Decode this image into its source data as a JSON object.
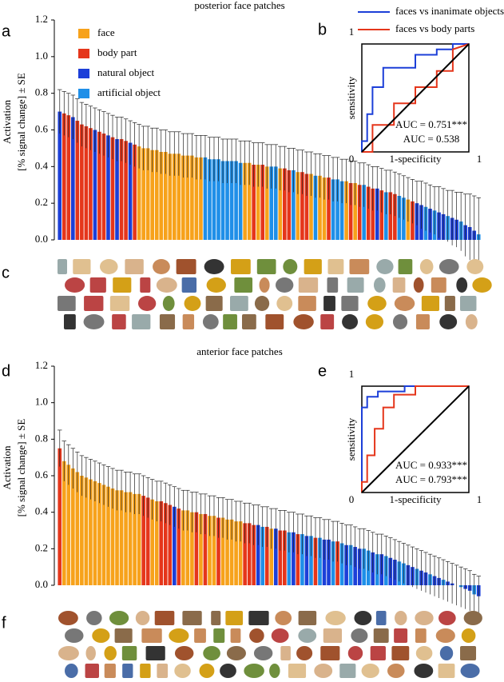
{
  "panel_labels": {
    "a": "a",
    "b": "b",
    "c": "c",
    "d": "d",
    "e": "e",
    "f": "f"
  },
  "chart_data": [
    {
      "type": "bar",
      "title": "posterior face patches",
      "ylabel": [
        "Activation",
        "[% signal change] ± SE"
      ],
      "legend": [
        {
          "name": "face",
          "color": "#f7a21b"
        },
        {
          "name": "body part",
          "color": "#e5361b"
        },
        {
          "name": "natural object",
          "color": "#1c3fd8"
        },
        {
          "name": "artificial object",
          "color": "#1f8fe8"
        }
      ],
      "ylim": [
        0,
        1.2
      ],
      "yticks": [
        {
          "value": 0,
          "label": "0.0"
        },
        0.2,
        0.4,
        0.6,
        0.8,
        {
          "value": 1,
          "label": "1.0"
        },
        1.2
      ],
      "values": [
        0.7,
        0.69,
        0.68,
        0.67,
        0.65,
        0.63,
        0.62,
        0.61,
        0.6,
        0.59,
        0.58,
        0.57,
        0.56,
        0.55,
        0.55,
        0.54,
        0.53,
        0.52,
        0.51,
        0.5,
        0.5,
        0.49,
        0.49,
        0.48,
        0.48,
        0.47,
        0.47,
        0.47,
        0.46,
        0.46,
        0.46,
        0.45,
        0.45,
        0.45,
        0.44,
        0.44,
        0.44,
        0.43,
        0.43,
        0.43,
        0.43,
        0.42,
        0.42,
        0.42,
        0.41,
        0.41,
        0.41,
        0.4,
        0.4,
        0.4,
        0.39,
        0.39,
        0.38,
        0.38,
        0.37,
        0.37,
        0.36,
        0.36,
        0.35,
        0.35,
        0.34,
        0.34,
        0.33,
        0.33,
        0.32,
        0.32,
        0.31,
        0.31,
        0.3,
        0.3,
        0.29,
        0.28,
        0.28,
        0.27,
        0.26,
        0.26,
        0.25,
        0.24,
        0.23,
        0.22,
        0.21,
        0.2,
        0.19,
        0.18,
        0.17,
        0.16,
        0.15,
        0.14,
        0.13,
        0.12,
        0.11,
        0.1,
        0.08,
        0.07,
        0.05,
        0.03
      ],
      "errors": [
        0.12,
        0.12,
        0.12,
        0.12,
        0.12,
        0.12,
        0.12,
        0.12,
        0.12,
        0.12,
        0.12,
        0.12,
        0.12,
        0.12,
        0.12,
        0.12,
        0.12,
        0.12,
        0.12,
        0.12,
        0.12,
        0.12,
        0.12,
        0.12,
        0.12,
        0.12,
        0.12,
        0.12,
        0.12,
        0.12,
        0.12,
        0.12,
        0.12,
        0.12,
        0.12,
        0.12,
        0.12,
        0.12,
        0.12,
        0.12,
        0.12,
        0.12,
        0.12,
        0.12,
        0.12,
        0.12,
        0.12,
        0.12,
        0.12,
        0.12,
        0.12,
        0.12,
        0.12,
        0.12,
        0.12,
        0.12,
        0.12,
        0.12,
        0.12,
        0.12,
        0.12,
        0.12,
        0.12,
        0.12,
        0.12,
        0.12,
        0.12,
        0.12,
        0.12,
        0.12,
        0.12,
        0.12,
        0.12,
        0.12,
        0.12,
        0.12,
        0.12,
        0.12,
        0.12,
        0.12,
        0.12,
        0.12,
        0.13,
        0.13,
        0.13,
        0.13,
        0.14,
        0.14,
        0.14,
        0.15,
        0.15,
        0.16,
        0.17,
        0.18,
        0.19,
        0.2
      ],
      "colors": [
        "#1c3fd8",
        "#e5361b",
        "#e5361b",
        "#1c3fd8",
        "#e5361b",
        "#e5361b",
        "#e5361b",
        "#e5361b",
        "#1c3fd8",
        "#e5361b",
        "#e5361b",
        "#1c3fd8",
        "#e5361b",
        "#1c3fd8",
        "#e5361b",
        "#e5361b",
        "#1c3fd8",
        "#e5361b",
        "#f7a21b",
        "#f7a21b",
        "#f7a21b",
        "#f7a21b",
        "#f7a21b",
        "#f7a21b",
        "#f7a21b",
        "#f7a21b",
        "#f7a21b",
        "#f7a21b",
        "#f7a21b",
        "#f7a21b",
        "#f7a21b",
        "#f7a21b",
        "#f7a21b",
        "#1f8fe8",
        "#1f8fe8",
        "#1f8fe8",
        "#1f8fe8",
        "#1f8fe8",
        "#1f8fe8",
        "#1f8fe8",
        "#1f8fe8",
        "#1f8fe8",
        "#f7a21b",
        "#f7a21b",
        "#e5361b",
        "#f7a21b",
        "#e5361b",
        "#f7a21b",
        "#1f8fe8",
        "#1f8fe8",
        "#f7a21b",
        "#e5361b",
        "#e5361b",
        "#1f8fe8",
        "#f7a21b",
        "#e5361b",
        "#e5361b",
        "#f7a21b",
        "#1f8fe8",
        "#f7a21b",
        "#f7a21b",
        "#e5361b",
        "#1f8fe8",
        "#1f8fe8",
        "#1f8fe8",
        "#f7a21b",
        "#e5361b",
        "#f7a21b",
        "#e5361b",
        "#1f8fe8",
        "#e5361b",
        "#e5361b",
        "#1c3fd8",
        "#e5361b",
        "#1f8fe8",
        "#e5361b",
        "#e5361b",
        "#1f8fe8",
        "#1f8fe8",
        "#f7a21b",
        "#e5361b",
        "#1c3fd8",
        "#1c3fd8",
        "#1f8fe8",
        "#1c3fd8",
        "#1f8fe8",
        "#1c3fd8",
        "#1c3fd8",
        "#1f8fe8",
        "#1c3fd8",
        "#1c3fd8",
        "#1f8fe8",
        "#1c3fd8",
        "#1c3fd8",
        "#1c3fd8",
        "#1f8fe8"
      ]
    },
    {
      "type": "line",
      "xlabel": "1-specificity",
      "ylabel": "sensitivity",
      "xlim": [
        0,
        1
      ],
      "ylim": [
        0,
        1
      ],
      "xticks": [
        1
      ],
      "yticks": [
        0,
        1
      ],
      "series": [
        {
          "name": "faces vs inanimate objects",
          "color": "#1c3fd8",
          "x": [
            0,
            0,
            0.05,
            0.05,
            0.1,
            0.1,
            0.2,
            0.2,
            0.5,
            0.5,
            0.7,
            0.7,
            0.85,
            0.85,
            1
          ],
          "y": [
            0,
            0.1,
            0.1,
            0.35,
            0.35,
            0.6,
            0.6,
            0.78,
            0.78,
            0.9,
            0.9,
            0.95,
            0.95,
            1,
            1
          ]
        },
        {
          "name": "faces vs body parts",
          "color": "#e5361b",
          "x": [
            0,
            0.1,
            0.1,
            0.3,
            0.3,
            0.5,
            0.5,
            0.7,
            0.7,
            0.85,
            0.85,
            1
          ],
          "y": [
            0,
            0,
            0.25,
            0.25,
            0.45,
            0.45,
            0.6,
            0.6,
            0.75,
            0.75,
            0.95,
            1
          ]
        },
        {
          "color": "#000000",
          "x": [
            0,
            1
          ],
          "y": [
            0,
            1
          ]
        }
      ],
      "annotations": [
        {
          "text": "AUC = 0.751***",
          "color": "#1c3fd8"
        },
        {
          "text": "AUC = 0.538",
          "color": "#e5361b"
        }
      ]
    },
    {
      "type": "bar",
      "title": "anterior face patches",
      "ylabel": [
        "Activation",
        "[% signal change] ± SE"
      ],
      "ylim": [
        0,
        1.2
      ],
      "yticks": [
        {
          "value": 0,
          "label": "0.0"
        },
        0.2,
        0.4,
        0.6,
        0.8,
        {
          "value": 1,
          "label": "1.0"
        },
        1.2
      ],
      "values": [
        0.75,
        0.68,
        0.66,
        0.64,
        0.62,
        0.6,
        0.59,
        0.58,
        0.57,
        0.56,
        0.55,
        0.54,
        0.53,
        0.52,
        0.52,
        0.51,
        0.51,
        0.5,
        0.5,
        0.49,
        0.48,
        0.47,
        0.46,
        0.46,
        0.45,
        0.44,
        0.43,
        0.42,
        0.41,
        0.41,
        0.4,
        0.4,
        0.39,
        0.39,
        0.38,
        0.38,
        0.37,
        0.37,
        0.36,
        0.36,
        0.35,
        0.35,
        0.34,
        0.34,
        0.33,
        0.33,
        0.32,
        0.32,
        0.31,
        0.31,
        0.3,
        0.3,
        0.29,
        0.29,
        0.28,
        0.28,
        0.27,
        0.27,
        0.26,
        0.26,
        0.25,
        0.25,
        0.24,
        0.24,
        0.23,
        0.22,
        0.22,
        0.21,
        0.2,
        0.2,
        0.19,
        0.18,
        0.17,
        0.17,
        0.16,
        0.15,
        0.14,
        0.13,
        0.12,
        0.11,
        0.1,
        0.09,
        0.08,
        0.07,
        0.06,
        0.05,
        0.04,
        0.03,
        0.02,
        0.01,
        0.0,
        -0.01,
        -0.02,
        -0.03,
        -0.05,
        -0.06
      ],
      "errors": [
        0.1,
        0.11,
        0.11,
        0.11,
        0.11,
        0.11,
        0.11,
        0.11,
        0.11,
        0.11,
        0.11,
        0.11,
        0.11,
        0.11,
        0.11,
        0.11,
        0.11,
        0.11,
        0.11,
        0.11,
        0.11,
        0.11,
        0.11,
        0.11,
        0.11,
        0.11,
        0.11,
        0.11,
        0.11,
        0.11,
        0.11,
        0.11,
        0.11,
        0.11,
        0.11,
        0.11,
        0.11,
        0.11,
        0.11,
        0.11,
        0.11,
        0.11,
        0.11,
        0.11,
        0.11,
        0.11,
        0.11,
        0.11,
        0.11,
        0.11,
        0.11,
        0.11,
        0.11,
        0.11,
        0.11,
        0.11,
        0.11,
        0.11,
        0.11,
        0.11,
        0.11,
        0.11,
        0.11,
        0.11,
        0.11,
        0.11,
        0.11,
        0.11,
        0.11,
        0.11,
        0.11,
        0.11,
        0.11,
        0.11,
        0.11,
        0.11,
        0.11,
        0.11,
        0.11,
        0.11,
        0.11,
        0.11,
        0.11,
        0.11,
        0.11,
        0.11,
        0.11,
        0.11,
        0.11,
        0.11,
        0.11,
        0.11,
        0.11,
        0.11,
        0.11,
        0.11
      ],
      "colors": [
        "#e5361b",
        "#f7a21b",
        "#f7a21b",
        "#f7a21b",
        "#f7a21b",
        "#f7a21b",
        "#f7a21b",
        "#f7a21b",
        "#f7a21b",
        "#f7a21b",
        "#f7a21b",
        "#f7a21b",
        "#f7a21b",
        "#f7a21b",
        "#f7a21b",
        "#f7a21b",
        "#f7a21b",
        "#f7a21b",
        "#f7a21b",
        "#e5361b",
        "#e5361b",
        "#f7a21b",
        "#f7a21b",
        "#e5361b",
        "#e5361b",
        "#e5361b",
        "#1c3fd8",
        "#e5361b",
        "#f7a21b",
        "#f7a21b",
        "#f7a21b",
        "#e5361b",
        "#f7a21b",
        "#e5361b",
        "#f7a21b",
        "#f7a21b",
        "#e5361b",
        "#f7a21b",
        "#f7a21b",
        "#f7a21b",
        "#f7a21b",
        "#f7a21b",
        "#e5361b",
        "#e5361b",
        "#e5361b",
        "#1c3fd8",
        "#1f8fe8",
        "#e5361b",
        "#f7a21b",
        "#1c3fd8",
        "#e5361b",
        "#e5361b",
        "#1f8fe8",
        "#1c3fd8",
        "#e5361b",
        "#1f8fe8",
        "#1c3fd8",
        "#1f8fe8",
        "#e5361b",
        "#1f8fe8",
        "#1c3fd8",
        "#1c3fd8",
        "#1f8fe8",
        "#e5361b",
        "#1f8fe8",
        "#1c3fd8",
        "#1f8fe8",
        "#1c3fd8",
        "#1c3fd8",
        "#1f8fe8",
        "#1f8fe8",
        "#1c3fd8",
        "#1f8fe8",
        "#1c3fd8",
        "#1f8fe8",
        "#1c3fd8",
        "#1c3fd8",
        "#1f8fe8",
        "#1f8fe8",
        "#1c3fd8",
        "#1c3fd8",
        "#1f8fe8",
        "#1c3fd8",
        "#1c3fd8",
        "#1f8fe8",
        "#1c3fd8",
        "#1c3fd8",
        "#1f8fe8",
        "#1c3fd8",
        "#1c3fd8",
        "#1c3fd8",
        "#1f8fe8",
        "#1c3fd8",
        "#1c3fd8",
        "#1f8fe8",
        "#1c3fd8"
      ]
    },
    {
      "type": "line",
      "xlabel": "1-specificity",
      "ylabel": "sensitivity",
      "xlim": [
        0,
        1
      ],
      "ylim": [
        0,
        1
      ],
      "xticks": [
        1
      ],
      "yticks": [
        0,
        1
      ],
      "series": [
        {
          "color": "#1c3fd8",
          "x": [
            0,
            0,
            0.05,
            0.05,
            0.15,
            0.15,
            0.4,
            0.4,
            1
          ],
          "y": [
            0,
            0.8,
            0.8,
            0.9,
            0.9,
            0.95,
            0.95,
            1,
            1
          ]
        },
        {
          "color": "#e5361b",
          "x": [
            0,
            0,
            0.05,
            0.05,
            0.12,
            0.12,
            0.2,
            0.2,
            0.3,
            0.3,
            0.5,
            0.5,
            1
          ],
          "y": [
            0,
            0.1,
            0.1,
            0.35,
            0.35,
            0.6,
            0.6,
            0.8,
            0.8,
            0.92,
            0.92,
            1,
            1
          ]
        },
        {
          "color": "#000000",
          "x": [
            0,
            1
          ],
          "y": [
            0,
            1
          ]
        }
      ],
      "annotations": [
        {
          "text": "AUC = 0.933***",
          "color": "#1c3fd8"
        },
        {
          "text": "AUC = 0.793***",
          "color": "#e5361b"
        }
      ]
    }
  ]
}
